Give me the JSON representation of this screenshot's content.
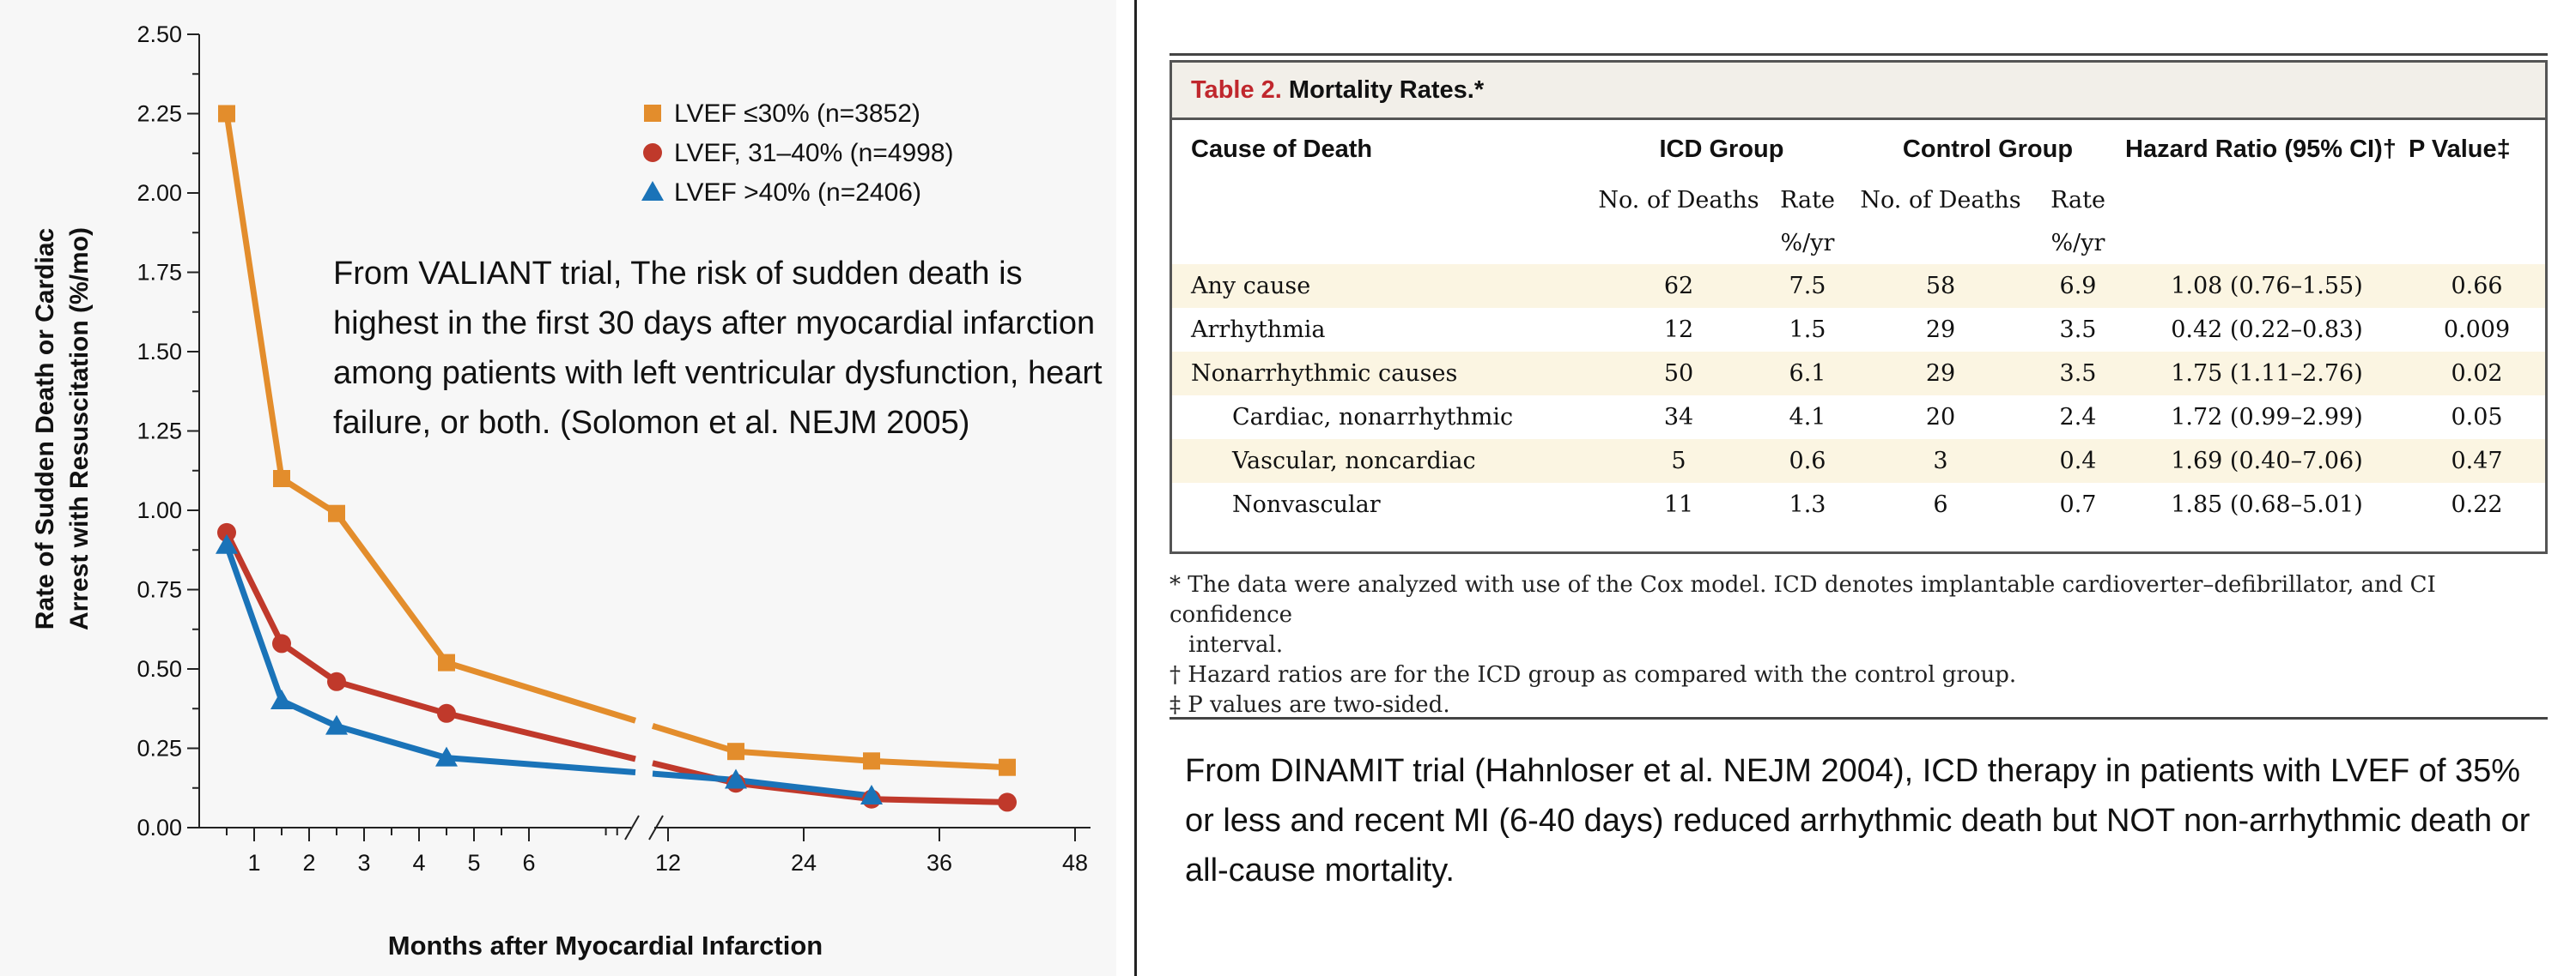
{
  "chart_data": {
    "type": "line",
    "ylabel": "Rate of Sudden Death or Cardiac Arrest with Resuscitation (%/mo)",
    "ylabel_lines": [
      "Rate of Sudden Death or Cardiac",
      "Arrest with Resuscitation (%/mo)"
    ],
    "xlabel": "Months after Myocardial Infarction",
    "ylim": [
      0,
      2.5
    ],
    "y_ticks": [
      "0.00",
      "0.25",
      "0.50",
      "0.75",
      "1.00",
      "1.25",
      "1.50",
      "1.75",
      "2.00",
      "2.25",
      "2.50"
    ],
    "x_ticks": [
      "1",
      "2",
      "3",
      "4",
      "5",
      "6",
      "12",
      "24",
      "36",
      "48"
    ],
    "x_axis_break": "between 6 and 12 months",
    "legend_position": "top-right",
    "series": [
      {
        "name": "LVEF ≤30% (n=3852)",
        "color": "#e38d2c",
        "marker": "square",
        "x": [
          0.5,
          1.5,
          2.5,
          4.5,
          18,
          30,
          42
        ],
        "values": [
          2.25,
          1.1,
          0.99,
          0.52,
          0.24,
          0.21,
          0.19
        ]
      },
      {
        "name": "LVEF, 31–40% (n=4998)",
        "color": "#c0392b",
        "marker": "circle",
        "x": [
          0.5,
          1.5,
          2.5,
          4.5,
          18,
          30,
          42
        ],
        "values": [
          0.93,
          0.58,
          0.46,
          0.36,
          0.14,
          0.09,
          0.08
        ]
      },
      {
        "name": "LVEF >40% (n=2406)",
        "color": "#1a73b8",
        "marker": "triangle",
        "x": [
          0.5,
          1.5,
          2.5,
          4.5,
          18,
          30
        ],
        "values": [
          0.89,
          0.4,
          0.32,
          0.22,
          0.15,
          0.1
        ]
      }
    ]
  },
  "valiant_note": "From VALIANT trial, The risk of sudden death is highest in the first 30 days after myocardial infarction among patients with left ventricular dysfunction, heart failure, or both. (Solomon et al. NEJM 2005)",
  "table": {
    "title_number": "Table 2.",
    "title_text": "Mortality Rates.*",
    "headers": {
      "cause": "Cause of Death",
      "icd": "ICD Group",
      "control": "Control Group",
      "hazard": "Hazard Ratio (95% CI)†",
      "pvalue": "P Value‡",
      "deaths": "No. of Deaths",
      "rate": "Rate",
      "rate_unit": "%/yr"
    },
    "rows": [
      {
        "cause": "Any cause",
        "icd_deaths": "62",
        "icd_rate": "7.5",
        "ctrl_deaths": "58",
        "ctrl_rate": "6.9",
        "hr": "1.08 (0.76–1.55)",
        "p": "0.66"
      },
      {
        "cause": "Arrhythmia",
        "icd_deaths": "12",
        "icd_rate": "1.5",
        "ctrl_deaths": "29",
        "ctrl_rate": "3.5",
        "hr": "0.42 (0.22–0.83)",
        "p": "0.009"
      },
      {
        "cause": "Nonarrhythmic causes",
        "icd_deaths": "50",
        "icd_rate": "6.1",
        "ctrl_deaths": "29",
        "ctrl_rate": "3.5",
        "hr": "1.75 (1.11–2.76)",
        "p": "0.02"
      },
      {
        "cause": "Cardiac, nonarrhythmic",
        "icd_deaths": "34",
        "icd_rate": "4.1",
        "ctrl_deaths": "20",
        "ctrl_rate": "2.4",
        "hr": "1.72 (0.99–2.99)",
        "p": "0.05"
      },
      {
        "cause": "Vascular, noncardiac",
        "icd_deaths": "5",
        "icd_rate": "0.6",
        "ctrl_deaths": "3",
        "ctrl_rate": "0.4",
        "hr": "1.69 (0.40–7.06)",
        "p": "0.47"
      },
      {
        "cause": "Nonvascular",
        "icd_deaths": "11",
        "icd_rate": "1.3",
        "ctrl_deaths": "6",
        "ctrl_rate": "0.7",
        "hr": "1.85 (0.68–5.01)",
        "p": "0.22"
      }
    ],
    "footnotes": {
      "star_1": "* The data were analyzed with use of the Cox model. ICD denotes implantable cardioverter–defibrillator, and CI confidence",
      "star_2": "interval.",
      "dagger": "† Hazard ratios are for the ICD group as compared with the control group.",
      "ddagger": "‡ P values are two-sided."
    }
  },
  "dinamit_note": "From DINAMIT trial (Hahnloser et al. NEJM 2004), ICD therapy in patients with LVEF of 35% or less and recent MI (6-40 days) reduced arrhythmic death but NOT non-arrhythmic death or all-cause mortality."
}
